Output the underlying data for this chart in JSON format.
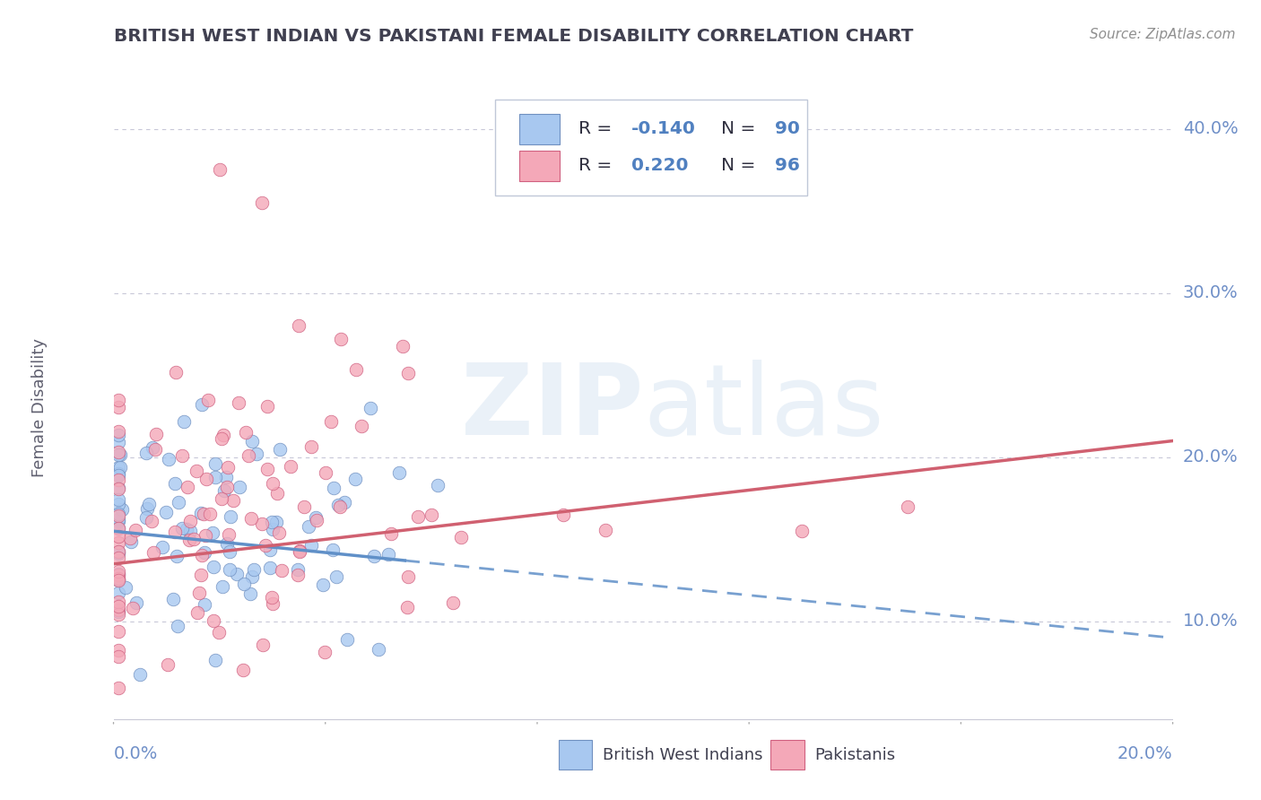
{
  "title": "BRITISH WEST INDIAN VS PAKISTANI FEMALE DISABILITY CORRELATION CHART",
  "source": "Source: ZipAtlas.com",
  "ylabel": "Female Disability",
  "xlim": [
    0.0,
    0.2
  ],
  "ylim": [
    0.04,
    0.42
  ],
  "ytick_labels_right": [
    "10.0%",
    "20.0%",
    "30.0%",
    "40.0%"
  ],
  "ytick_positions_right": [
    0.1,
    0.2,
    0.3,
    0.4
  ],
  "blue_R": -0.14,
  "blue_N": 90,
  "pink_R": 0.22,
  "pink_N": 96,
  "blue_color": "#A8C8F0",
  "pink_color": "#F4A8B8",
  "blue_edge_color": "#7090C0",
  "pink_edge_color": "#D06080",
  "blue_line_color": "#6090C8",
  "pink_line_color": "#D06070",
  "grid_color": "#C8C8D8",
  "background_color": "#FFFFFF",
  "axis_label_color": "#7090C8",
  "title_color": "#404050",
  "source_color": "#909090",
  "ylabel_color": "#606070",
  "legend_text_color": "#303040",
  "legend_value_color": "#5080C0"
}
